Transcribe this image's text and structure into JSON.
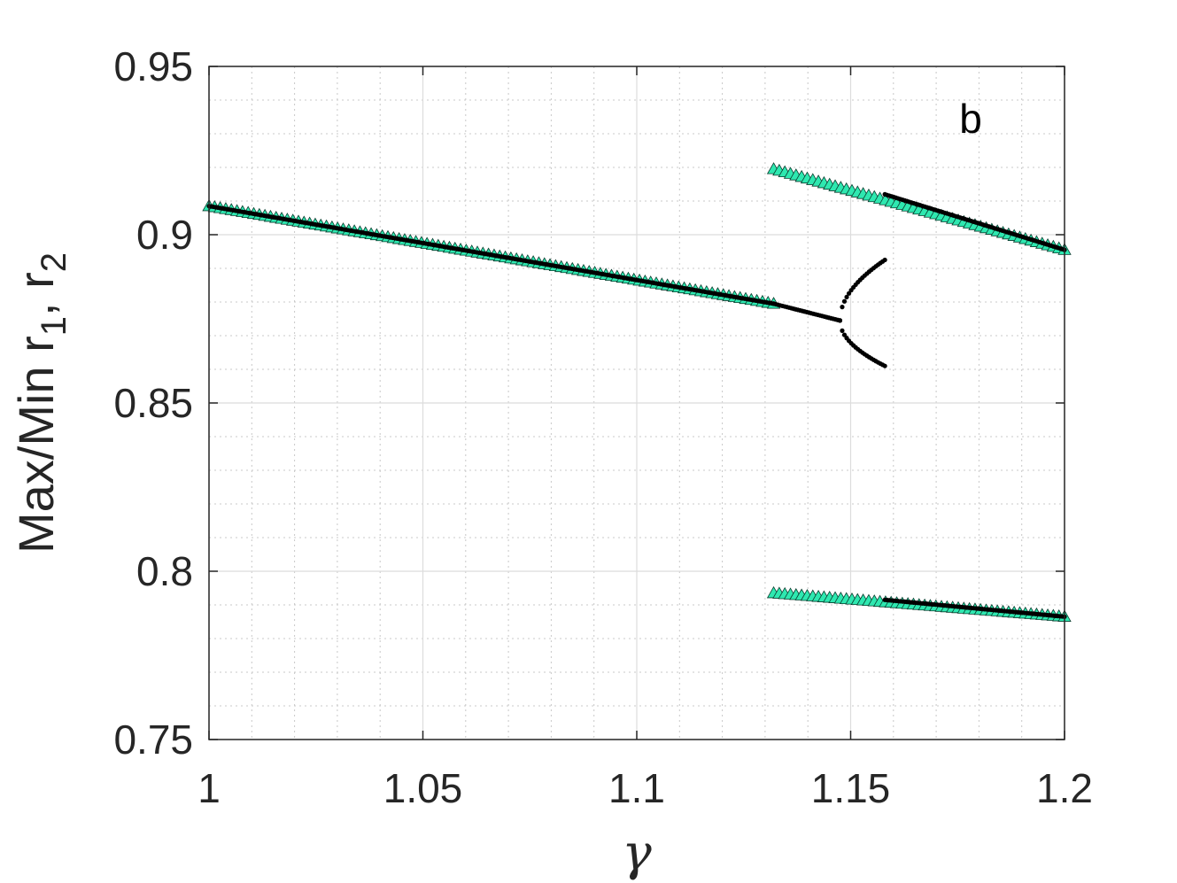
{
  "chart_data": {
    "type": "scatter",
    "title": "",
    "panel_label": "b",
    "xlabel": "γ",
    "ylabel": {
      "main": "Max/Min r",
      "sub1": "1",
      "sep": ", r",
      "sub2": "2"
    },
    "xlim": [
      1.0,
      1.2
    ],
    "ylim": [
      0.75,
      0.95
    ],
    "xticks": [
      1.0,
      1.05,
      1.1,
      1.15,
      1.2
    ],
    "xtick_labels": [
      "1",
      "1.05",
      "1.1",
      "1.15",
      "1.2"
    ],
    "yticks": [
      0.75,
      0.8,
      0.85,
      0.9,
      0.95
    ],
    "ytick_labels": [
      "0.75",
      "0.8",
      "0.85",
      "0.9",
      "0.95"
    ],
    "grid": true,
    "minor_grid": true,
    "series": [
      {
        "marker": "triangle",
        "color": "#2ee8b0",
        "edge_color": "#0a3d2e",
        "segments": [
          {
            "x": [
              1.0,
              1.132
            ],
            "y": [
              0.9085,
              0.8795
            ]
          },
          {
            "x": [
              1.132,
              1.2
            ],
            "y": [
              0.9195,
              0.8955
            ]
          },
          {
            "x": [
              1.132,
              1.2
            ],
            "y": [
              0.7935,
              0.7865
            ]
          }
        ]
      },
      {
        "marker": "dot",
        "color": "#000000",
        "segments": [
          {
            "x": [
              1.0,
              1.132
            ],
            "y": [
              0.9085,
              0.8795
            ]
          },
          {
            "x": [
              1.132,
              1.1475
            ],
            "y": [
              0.8795,
              0.8745
            ]
          },
          {
            "x": [
              1.1475,
              1.158
            ],
            "y": [
              0.8745,
              0.8925
            ],
            "curve": "sqrt"
          },
          {
            "x": [
              1.1475,
              1.158
            ],
            "y": [
              0.8745,
              0.861
            ],
            "curve": "sqrt"
          },
          {
            "x": [
              1.158,
              1.2
            ],
            "y": [
              0.912,
              0.8955
            ]
          },
          {
            "x": [
              1.158,
              1.2
            ],
            "y": [
              0.7915,
              0.7865
            ]
          }
        ]
      }
    ]
  }
}
